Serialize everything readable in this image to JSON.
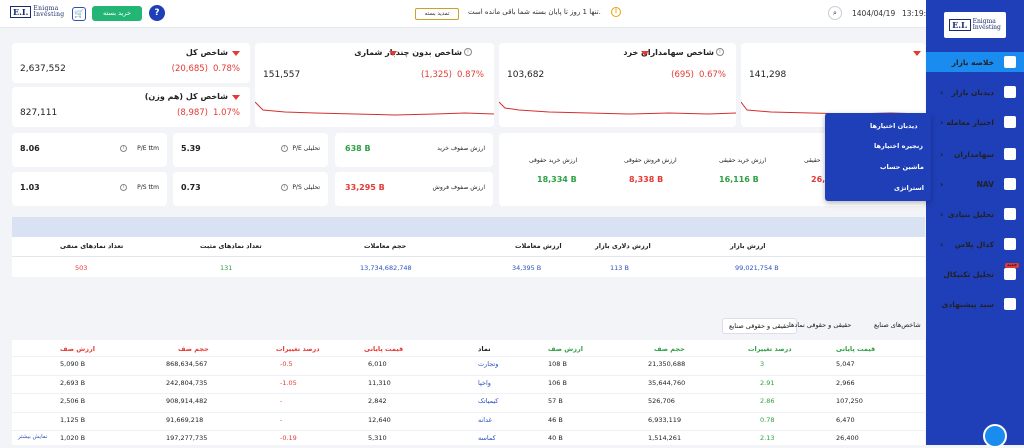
{
  "header": {
    "time": "13:19:4",
    "date": "1404/04/19",
    "notice": "تنها 1 روز تا پایان بسته شما باقی مانده است.",
    "renew": "تمدید بسته",
    "buy": "خرید بسته",
    "logo_ei": "E.I.",
    "logo_l1": "Enigma",
    "logo_l2": "Investing"
  },
  "indices": [
    {
      "title": "شاخص کل",
      "value": "2,637,552",
      "change": "(20,685)",
      "pct": "0.78%"
    },
    {
      "title": "شاخص کل (هم وزن)",
      "value": "827,111",
      "change": "(8,987)",
      "pct": "1.07%"
    },
    {
      "title": "شاخص بدون چندبار شماری",
      "value": "151,557",
      "change": "(1,325)",
      "pct": "0.87%"
    },
    {
      "title": "شاخص سهامداران خرد",
      "value": "103,682",
      "change": "(695)",
      "pct": "0.67%"
    },
    {
      "value": "141,298"
    }
  ],
  "ratios": [
    {
      "label": "P/E ttm",
      "value": "8.06"
    },
    {
      "label": "P/E تحلیلی",
      "value": "5.39"
    },
    {
      "label": "P/S ttm",
      "value": "1.03"
    },
    {
      "label": "P/S تحلیلی",
      "value": "0.73"
    }
  ],
  "queues": [
    {
      "label": "ارزش صفوف خرید",
      "value": "638 B"
    },
    {
      "label": "ارزش صفوف فروش",
      "value": "33,295 B"
    }
  ],
  "flows": [
    {
      "label": "ارزش خرید حقوقی",
      "value": "18,334 B"
    },
    {
      "label": "ارزش فروش حقوقی",
      "value": "8,338 B"
    },
    {
      "label": "ارزش خرید حقیقی",
      "value": "16,116 B"
    },
    {
      "label": "حقیقی",
      "value": "26,1"
    }
  ],
  "market": {
    "headers": [
      "ارزش بازار",
      "ارزش دلاری بازار",
      "ارزش معاملات",
      "حجم معاملات",
      "تعداد نمادهای مثبت",
      "تعداد نمادهای منفی"
    ],
    "values": [
      "99,021,754 B",
      "113 B",
      "34,395 B",
      "13,734,682,748",
      "131",
      "503"
    ]
  },
  "tabs": [
    "شاخص‌های صنایع",
    "حقیقی و حقوقی نمادها",
    "حقیقی و حقوقی صنایع"
  ],
  "table": {
    "headers": [
      "قیمت پایانی",
      "درصد تغییرات",
      "حجم صف",
      "ارزش صف",
      "نماد",
      "قیمت پایانی",
      "درصد تغییرات",
      "حجم صف",
      "ارزش صف"
    ],
    "rows": [
      [
        "5,047",
        "3",
        "21,350,688",
        "108 B",
        "وتجارت",
        "6,010",
        "-0.5",
        "868,634,567",
        "5,090 B"
      ],
      [
        "2,966",
        "2.91",
        "35,644,760",
        "106 B",
        "واخپا",
        "11,310",
        "-1.05",
        "242,804,735",
        "2,693 B"
      ],
      [
        "107,250",
        "2.86",
        "526,706",
        "57 B",
        "کیمیاتک",
        "2,842",
        "-",
        "908,914,482",
        "2,506 B"
      ],
      [
        "6,470",
        "0.78",
        "6,933,119",
        "46 B",
        "غدانه",
        "12,640",
        "-",
        "91,669,218",
        "1,125 B"
      ],
      [
        "26,400",
        "2.13",
        "1,514,261",
        "40 B",
        "کماسه",
        "5,310",
        "-0.19",
        "197,277,735",
        "1,020 B"
      ]
    ],
    "more": "نمایش بیشتر"
  },
  "sidebar": {
    "logo_ei": "E.I.",
    "logo_l1": "Enigma",
    "logo_l2": "Investing",
    "items": [
      "خلاصه بازار",
      "دیدبان بازار",
      "اختیار معامله",
      "سهامداران",
      "NAV",
      "تحلیل بنیادی",
      "کدال پلاس",
      "تحلیل تکنیکال",
      "سبد پیشنهادی"
    ],
    "badge": "جدید"
  },
  "submenu": [
    "دیدبان اختیارها",
    "زنجیره اختیارها",
    "ماشین حساب",
    "استراتژی"
  ]
}
